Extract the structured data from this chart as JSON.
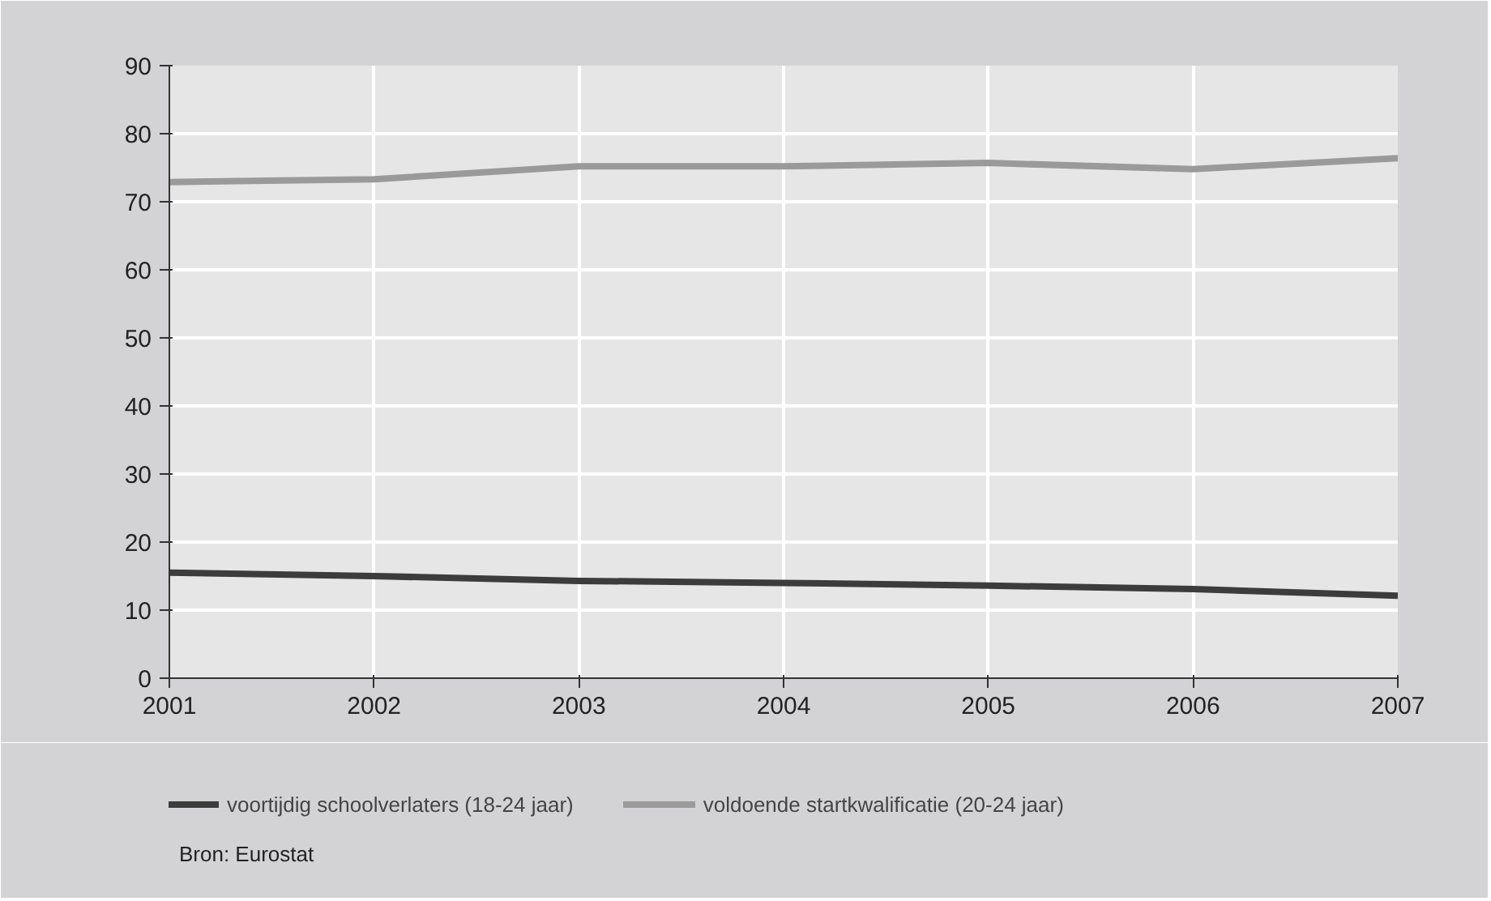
{
  "chart_data": {
    "type": "line",
    "x": [
      2001,
      2002,
      2003,
      2004,
      2005,
      2006,
      2007
    ],
    "series": [
      {
        "name": "voortijdig schoolverlaters (18-24 jaar)",
        "color": "#3c3c3c",
        "values": [
          15.5,
          15.0,
          14.3,
          14.0,
          13.6,
          13.1,
          12.1
        ]
      },
      {
        "name": "voldoende startkwalificatie (20-24 jaar)",
        "color": "#9a9a9a",
        "values": [
          72.9,
          73.3,
          75.2,
          75.2,
          75.7,
          74.8,
          76.4
        ]
      }
    ],
    "xlim": [
      2001,
      2007
    ],
    "xticks": [
      2001,
      2002,
      2003,
      2004,
      2005,
      2006,
      2007
    ],
    "ylim": [
      0,
      90
    ],
    "yticks": [
      0,
      10,
      20,
      30,
      40,
      50,
      60,
      70,
      80,
      90
    ],
    "grid": true,
    "legend": "bottom",
    "marker": "none",
    "line_style": "solid",
    "annotations": [
      "Bron: Eurostat"
    ]
  }
}
